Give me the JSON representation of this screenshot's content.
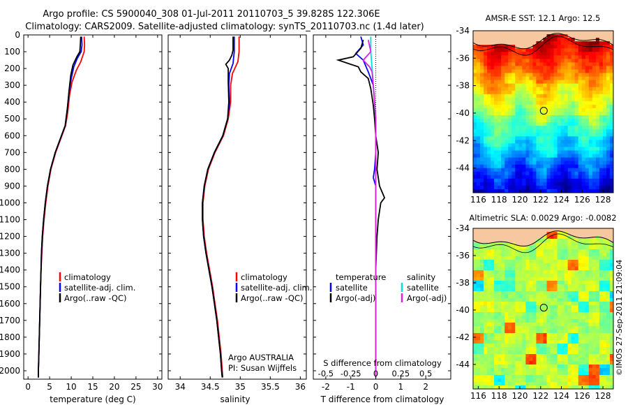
{
  "title": {
    "line1": "Argo profile: CS 5900040_308 01-Jul-2011 20110703_5 39.828S 122.306E",
    "line2": "Climatology: CARS2009. Satellite-adjusted climatology: synTS_20110703.nc (1.4d later)"
  },
  "colors": {
    "clim": "#ff0000",
    "sat": "#0000ff",
    "argo": "#000000",
    "sat_s": "#00e0e0",
    "argo_s": "#e020e0"
  },
  "chart_data": [
    {
      "id": "temperature",
      "type": "line",
      "xlabel": "temperature (deg C)",
      "xlim": [
        -1,
        31
      ],
      "ylim": [
        0,
        2050
      ],
      "xticks": [
        0,
        5,
        10,
        15,
        20,
        25,
        30
      ],
      "yticks": [
        0,
        100,
        200,
        300,
        400,
        500,
        600,
        700,
        800,
        900,
        1000,
        1100,
        1200,
        1300,
        1400,
        1500,
        1600,
        1700,
        1800,
        1900,
        2000
      ],
      "legend": [
        "climatology",
        "satellite-adj. clim.",
        "Argo(..raw -QC)"
      ],
      "series": [
        {
          "name": "climatology",
          "points": [
            [
              13.0,
              10
            ],
            [
              13.1,
              60
            ],
            [
              13.0,
              100
            ],
            [
              12.2,
              160
            ],
            [
              11.2,
              210
            ],
            [
              10.2,
              280
            ],
            [
              9.6,
              360
            ],
            [
              9.2,
              460
            ],
            [
              8.7,
              540
            ],
            [
              7.7,
              610
            ],
            [
              6.4,
              700
            ],
            [
              5.3,
              800
            ],
            [
              4.6,
              900
            ],
            [
              4.1,
              1000
            ],
            [
              3.7,
              1100
            ],
            [
              3.4,
              1200
            ],
            [
              3.2,
              1300
            ],
            [
              3.0,
              1400
            ],
            [
              2.9,
              1500
            ],
            [
              2.8,
              1600
            ],
            [
              2.7,
              1700
            ],
            [
              2.6,
              1800
            ],
            [
              2.5,
              1900
            ],
            [
              2.4,
              2000
            ],
            [
              2.4,
              2040
            ]
          ]
        },
        {
          "name": "satellite-adj. clim.",
          "points": [
            [
              12.4,
              10
            ],
            [
              12.5,
              60
            ],
            [
              12.3,
              100
            ],
            [
              11.4,
              140
            ],
            [
              10.6,
              190
            ],
            [
              10.0,
              260
            ],
            [
              9.5,
              340
            ],
            [
              9.1,
              440
            ],
            [
              8.6,
              540
            ],
            [
              7.6,
              610
            ],
            [
              6.3,
              700
            ],
            [
              5.2,
              800
            ],
            [
              4.5,
              900
            ],
            [
              4.0,
              1000
            ],
            [
              3.6,
              1100
            ],
            [
              3.3,
              1200
            ],
            [
              3.1,
              1300
            ],
            [
              3.0,
              1400
            ],
            [
              2.9,
              1500
            ],
            [
              2.8,
              1600
            ],
            [
              2.7,
              1700
            ],
            [
              2.6,
              1800
            ],
            [
              2.5,
              1900
            ],
            [
              2.4,
              2000
            ],
            [
              2.4,
              2040
            ]
          ]
        },
        {
          "name": "Argo(..raw -QC)",
          "points": [
            [
              12.2,
              10
            ],
            [
              12.1,
              60
            ],
            [
              12.0,
              100
            ],
            [
              11.3,
              130
            ],
            [
              10.4,
              180
            ],
            [
              9.9,
              240
            ],
            [
              9.5,
              330
            ],
            [
              9.1,
              440
            ],
            [
              8.6,
              540
            ],
            [
              7.6,
              610
            ],
            [
              6.3,
              700
            ],
            [
              5.2,
              800
            ],
            [
              4.5,
              900
            ],
            [
              4.0,
              1000
            ],
            [
              3.6,
              1100
            ],
            [
              3.3,
              1200
            ],
            [
              3.1,
              1300
            ],
            [
              3.0,
              1400
            ],
            [
              2.9,
              1500
            ],
            [
              2.8,
              1600
            ],
            [
              2.7,
              1700
            ],
            [
              2.6,
              1800
            ],
            [
              2.5,
              1900
            ],
            [
              2.4,
              2000
            ],
            [
              2.4,
              2040
            ]
          ]
        }
      ]
    },
    {
      "id": "salinity",
      "type": "line",
      "xlabel": "salinity",
      "xlim": [
        33.8,
        36.1
      ],
      "ylim": [
        0,
        2050
      ],
      "xticks": [
        34,
        34.5,
        35,
        35.5,
        36
      ],
      "xticklabels": [
        "34",
        "34.5",
        "35",
        "35.5",
        "36"
      ],
      "yticks": [
        0,
        100,
        200,
        300,
        400,
        500,
        600,
        700,
        800,
        900,
        1000,
        1100,
        1200,
        1300,
        1400,
        1500,
        1600,
        1700,
        1800,
        1900,
        2000
      ],
      "legend": [
        "climatology",
        "satellite-adj. clim.",
        "Argo(..raw -QC)"
      ],
      "annotation": [
        "Argo AUSTRALIA",
        "PI: Susan Wijffels"
      ],
      "series": [
        {
          "name": "climatology",
          "points": [
            [
              34.98,
              10
            ],
            [
              34.98,
              100
            ],
            [
              34.96,
              160
            ],
            [
              34.87,
              230
            ],
            [
              34.84,
              300
            ],
            [
              34.84,
              400
            ],
            [
              34.8,
              500
            ],
            [
              34.72,
              600
            ],
            [
              34.58,
              700
            ],
            [
              34.47,
              800
            ],
            [
              34.41,
              900
            ],
            [
              34.38,
              1000
            ],
            [
              34.38,
              1100
            ],
            [
              34.4,
              1200
            ],
            [
              34.44,
              1300
            ],
            [
              34.49,
              1400
            ],
            [
              34.54,
              1500
            ],
            [
              34.58,
              1600
            ],
            [
              34.62,
              1700
            ],
            [
              34.65,
              1800
            ],
            [
              34.68,
              1900
            ],
            [
              34.7,
              2000
            ],
            [
              34.71,
              2040
            ]
          ]
        },
        {
          "name": "satellite-adj. clim.",
          "points": [
            [
              34.9,
              10
            ],
            [
              34.9,
              100
            ],
            [
              34.88,
              170
            ],
            [
              34.82,
              230
            ],
            [
              34.81,
              300
            ],
            [
              34.82,
              400
            ],
            [
              34.79,
              500
            ],
            [
              34.71,
              600
            ],
            [
              34.57,
              700
            ],
            [
              34.46,
              800
            ],
            [
              34.4,
              900
            ],
            [
              34.37,
              1000
            ],
            [
              34.37,
              1100
            ],
            [
              34.39,
              1200
            ],
            [
              34.43,
              1300
            ],
            [
              34.48,
              1400
            ],
            [
              34.53,
              1500
            ],
            [
              34.57,
              1600
            ],
            [
              34.61,
              1700
            ],
            [
              34.64,
              1800
            ],
            [
              34.67,
              1900
            ],
            [
              34.69,
              2000
            ],
            [
              34.7,
              2040
            ]
          ]
        },
        {
          "name": "Argo(..raw -QC)",
          "points": [
            [
              34.88,
              10
            ],
            [
              34.88,
              90
            ],
            [
              34.86,
              120
            ],
            [
              34.82,
              150
            ],
            [
              34.76,
              175
            ],
            [
              34.8,
              200
            ],
            [
              34.8,
              280
            ],
            [
              34.81,
              400
            ],
            [
              34.79,
              500
            ],
            [
              34.71,
              600
            ],
            [
              34.57,
              700
            ],
            [
              34.46,
              800
            ],
            [
              34.4,
              900
            ],
            [
              34.37,
              1000
            ],
            [
              34.37,
              1100
            ],
            [
              34.39,
              1200
            ],
            [
              34.43,
              1300
            ],
            [
              34.48,
              1400
            ],
            [
              34.53,
              1500
            ],
            [
              34.57,
              1600
            ],
            [
              34.61,
              1700
            ],
            [
              34.64,
              1800
            ],
            [
              34.67,
              1900
            ],
            [
              34.69,
              2000
            ],
            [
              34.7,
              2040
            ]
          ]
        }
      ]
    },
    {
      "id": "difference",
      "type": "line",
      "xlabel": "T difference from climatology",
      "xlabel_top": "S difference from climatology",
      "xlim": [
        -2.5,
        3
      ],
      "ylim": [
        0,
        2050
      ],
      "xticks": [
        -2,
        -1,
        0,
        1,
        2
      ],
      "xticklabels": [
        "-2",
        "-1",
        "0",
        "1",
        "2"
      ],
      "sticks": [
        -2,
        -1,
        0,
        1,
        2
      ],
      "sticklabels": [
        "-0.5",
        "-0.25",
        "0",
        "0.25",
        "0.5"
      ],
      "yticks": [
        0,
        100,
        200,
        300,
        400,
        500,
        600,
        700,
        800,
        900,
        1000,
        1100,
        1200,
        1300,
        1400,
        1500,
        1600,
        1700,
        1800,
        1900,
        2000
      ],
      "legend_titles": [
        "temperature",
        "salinity"
      ],
      "legend": [
        "satellite",
        "Argo(-adj)",
        "satellite",
        "Argo(-adj)"
      ],
      "series": [
        {
          "name": "T satellite",
          "points": [
            [
              -0.6,
              10
            ],
            [
              -0.5,
              60
            ],
            [
              -0.8,
              110
            ],
            [
              -0.5,
              150
            ],
            [
              -0.3,
              220
            ],
            [
              -0.1,
              300
            ],
            [
              -0.05,
              400
            ],
            [
              0,
              500
            ],
            [
              0,
              700
            ],
            [
              -0.05,
              800
            ],
            [
              -0.1,
              850
            ],
            [
              0,
              900
            ],
            [
              0,
              1000
            ],
            [
              0,
              1200
            ],
            [
              0,
              1600
            ],
            [
              0,
              2040
            ]
          ]
        },
        {
          "name": "T Argo(-adj)",
          "points": [
            [
              -0.5,
              30
            ],
            [
              -0.6,
              80
            ],
            [
              -0.9,
              130
            ],
            [
              -1.5,
              150
            ],
            [
              -1.0,
              175
            ],
            [
              -0.7,
              190
            ],
            [
              -0.6,
              220
            ],
            [
              -0.3,
              260
            ],
            [
              -0.2,
              320
            ],
            [
              -0.1,
              420
            ],
            [
              -0.05,
              500
            ],
            [
              0,
              600
            ],
            [
              0.1,
              700
            ],
            [
              0.05,
              800
            ],
            [
              0.15,
              900
            ],
            [
              0.35,
              970
            ],
            [
              0.2,
              1000
            ],
            [
              0.1,
              1100
            ],
            [
              0.05,
              1200
            ],
            [
              0,
              1400
            ],
            [
              0,
              2040
            ]
          ]
        },
        {
          "name": "S satellite",
          "points": [
            [
              -0.2,
              10
            ],
            [
              -0.2,
              100
            ],
            [
              -0.15,
              200
            ],
            [
              -0.1,
              300
            ],
            [
              -0.05,
              400
            ],
            [
              0,
              500
            ],
            [
              0,
              2040
            ]
          ]
        },
        {
          "name": "S Argo(-adj)",
          "points": [
            [
              -0.3,
              30
            ],
            [
              -0.2,
              100
            ],
            [
              -0.5,
              150
            ],
            [
              -0.25,
              190
            ],
            [
              -0.15,
              220
            ],
            [
              -0.1,
              300
            ],
            [
              -0.05,
              400
            ],
            [
              0,
              500
            ],
            [
              0,
              2040
            ]
          ]
        }
      ]
    },
    {
      "id": "sst_map",
      "type": "heatmap",
      "title": "AMSR-E SST: 12.1 Argo: 12.5",
      "xlim": [
        115.5,
        129
      ],
      "ylim": [
        -45.8,
        -34
      ],
      "xticks": [
        116,
        118,
        120,
        122,
        124,
        126,
        128
      ],
      "yticks": [
        -34,
        -36,
        -38,
        -40,
        -42,
        -44
      ],
      "marker": [
        122.306,
        -39.828
      ]
    },
    {
      "id": "sla_map",
      "type": "heatmap",
      "title": "Altimetric SLA: 0.0029 Argo: -0.0082",
      "xlim": [
        115.5,
        129
      ],
      "ylim": [
        -45.8,
        -34
      ],
      "xticks": [
        116,
        118,
        120,
        122,
        124,
        126,
        128
      ],
      "yticks": [
        -34,
        -36,
        -38,
        -40,
        -42,
        -44
      ],
      "marker": [
        122.306,
        -39.828
      ]
    }
  ],
  "side_stamp": "©IMOS 27-Sep-2011 21:09:04"
}
